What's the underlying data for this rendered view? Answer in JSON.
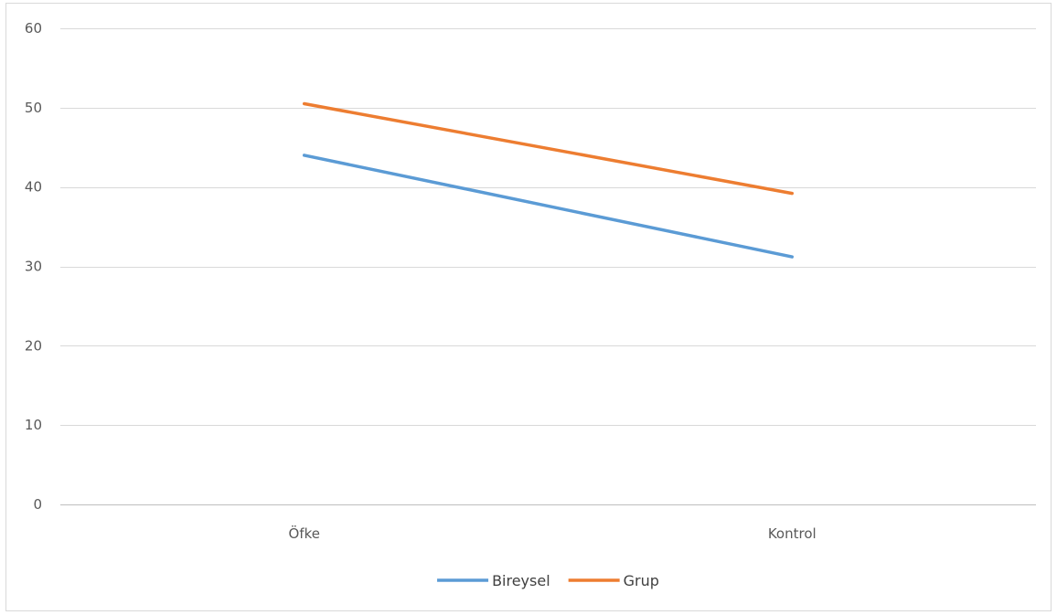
{
  "chart_data": {
    "type": "line",
    "categories": [
      "Öfke",
      "Kontrol"
    ],
    "series": [
      {
        "name": "Bireysel",
        "values": [
          44,
          31.2
        ],
        "color": "#5b9bd5"
      },
      {
        "name": "Grup",
        "values": [
          50.5,
          39.2
        ],
        "color": "#ed7d31"
      }
    ],
    "ylim": [
      0,
      60
    ],
    "yticks": [
      0,
      10,
      20,
      30,
      40,
      50,
      60
    ],
    "grid": true,
    "legend": "bottom",
    "colors": {
      "grid": "#d9d9d9",
      "axis": "#bfbfbf"
    }
  }
}
